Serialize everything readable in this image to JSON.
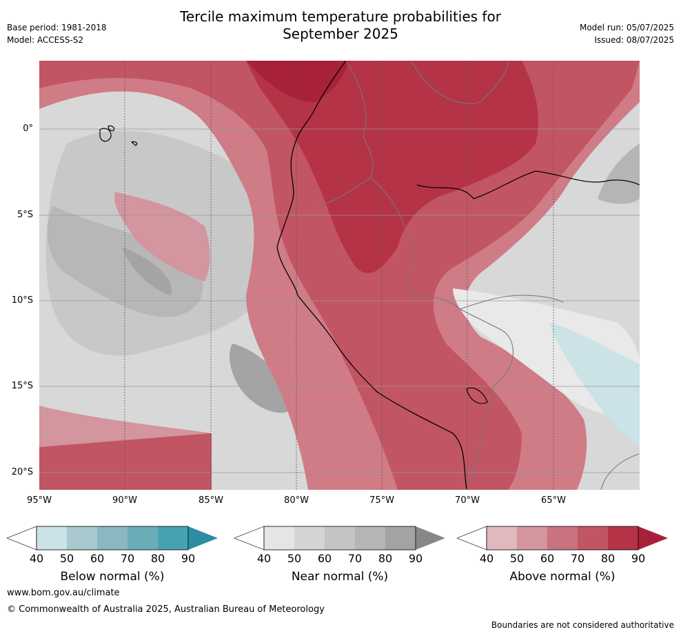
{
  "title": {
    "line1": "Tercile maximum temperature probabilities for",
    "line2": "September 2025"
  },
  "meta_left": {
    "base_period": "Base period: 1981-2018",
    "model": "Model: ACCESS-S2"
  },
  "meta_right": {
    "model_run": "Model run: 05/07/2025",
    "issued": "Issued: 08/07/2025"
  },
  "map": {
    "lat_labels": [
      "0°",
      "5°S",
      "10°S",
      "15°S",
      "20°S"
    ],
    "lon_labels": [
      "95°W",
      "90°W",
      "85°W",
      "80°W",
      "75°W",
      "70°W",
      "65°W"
    ]
  },
  "colorbars": [
    {
      "label": "Below normal (%)",
      "ticks": [
        "40",
        "50",
        "60",
        "70",
        "80",
        "90"
      ],
      "colors": [
        "#ffffff",
        "#cbe2e7",
        "#a9c8cf",
        "#89b7c2",
        "#6aadb9",
        "#46a2b2",
        "#2e8da0"
      ]
    },
    {
      "label": "Near normal (%)",
      "ticks": [
        "40",
        "50",
        "60",
        "70",
        "80",
        "90"
      ],
      "colors": [
        "#ffffff",
        "#e5e5e5",
        "#d4d4d4",
        "#c4c4c4",
        "#b5b5b5",
        "#a3a3a3",
        "#888888"
      ]
    },
    {
      "label": "Above normal (%)",
      "ticks": [
        "40",
        "50",
        "60",
        "70",
        "80",
        "90"
      ],
      "colors": [
        "#ffffff",
        "#e0b8be",
        "#d3959e",
        "#c9737e",
        "#c25563",
        "#b53347",
        "#a8213a"
      ]
    }
  ],
  "footer": {
    "url": "www.bom.gov.au/climate",
    "copyright": "© Commonwealth of Australia 2025, Australian Bureau of Meteorology",
    "disclaimer": "Boundaries are not considered authoritative"
  }
}
